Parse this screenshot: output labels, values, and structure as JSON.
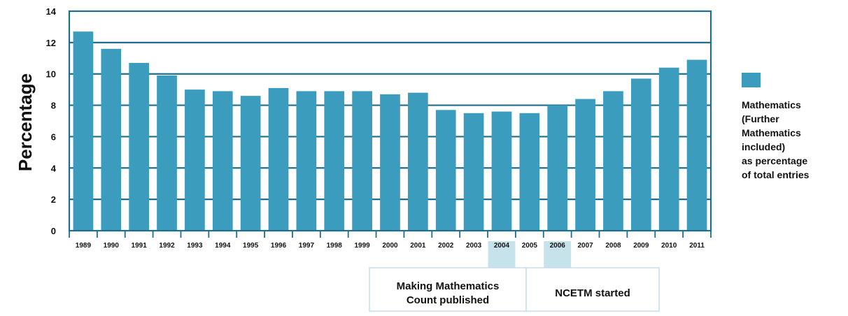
{
  "chart_data": {
    "type": "bar",
    "title": "",
    "xlabel": "",
    "ylabel": "Percentage",
    "ylim": [
      0,
      14
    ],
    "yticks": [
      0,
      2,
      4,
      6,
      8,
      10,
      12,
      14
    ],
    "grid": true,
    "legend_position": "right",
    "categories": [
      "1989",
      "1990",
      "1991",
      "1992",
      "1993",
      "1994",
      "1995",
      "1996",
      "1997",
      "1998",
      "1999",
      "2000",
      "2001",
      "2002",
      "2003",
      "2004",
      "2005",
      "2006",
      "2007",
      "2008",
      "2009",
      "2010",
      "2011"
    ],
    "series": [
      {
        "name": "Mathematics (Further Mathematics included) as percentage of total entries",
        "values": [
          12.7,
          11.6,
          10.7,
          9.9,
          9.0,
          8.9,
          8.6,
          9.1,
          8.9,
          8.9,
          8.9,
          8.7,
          8.8,
          7.7,
          7.5,
          7.6,
          7.5,
          8.0,
          8.4,
          8.9,
          9.7,
          10.4,
          10.9
        ],
        "color": "#3c9cbe"
      }
    ],
    "legend": {
      "lines": [
        "Mathematics",
        "(Further",
        "Mathematics",
        "included)",
        "as percentage",
        "of total entries"
      ]
    },
    "annotations": [
      {
        "category": "2004",
        "lines": [
          "Making Mathematics",
          "Count published"
        ]
      },
      {
        "category": "2006",
        "lines": [
          "NCETM started"
        ]
      }
    ],
    "colors": {
      "bar": "#3c9cbe",
      "frame": "#1e6f8e",
      "grid": "#1e6f8e",
      "highlight": "#c6e2ea",
      "annotation_border": "#c8dde6"
    }
  }
}
